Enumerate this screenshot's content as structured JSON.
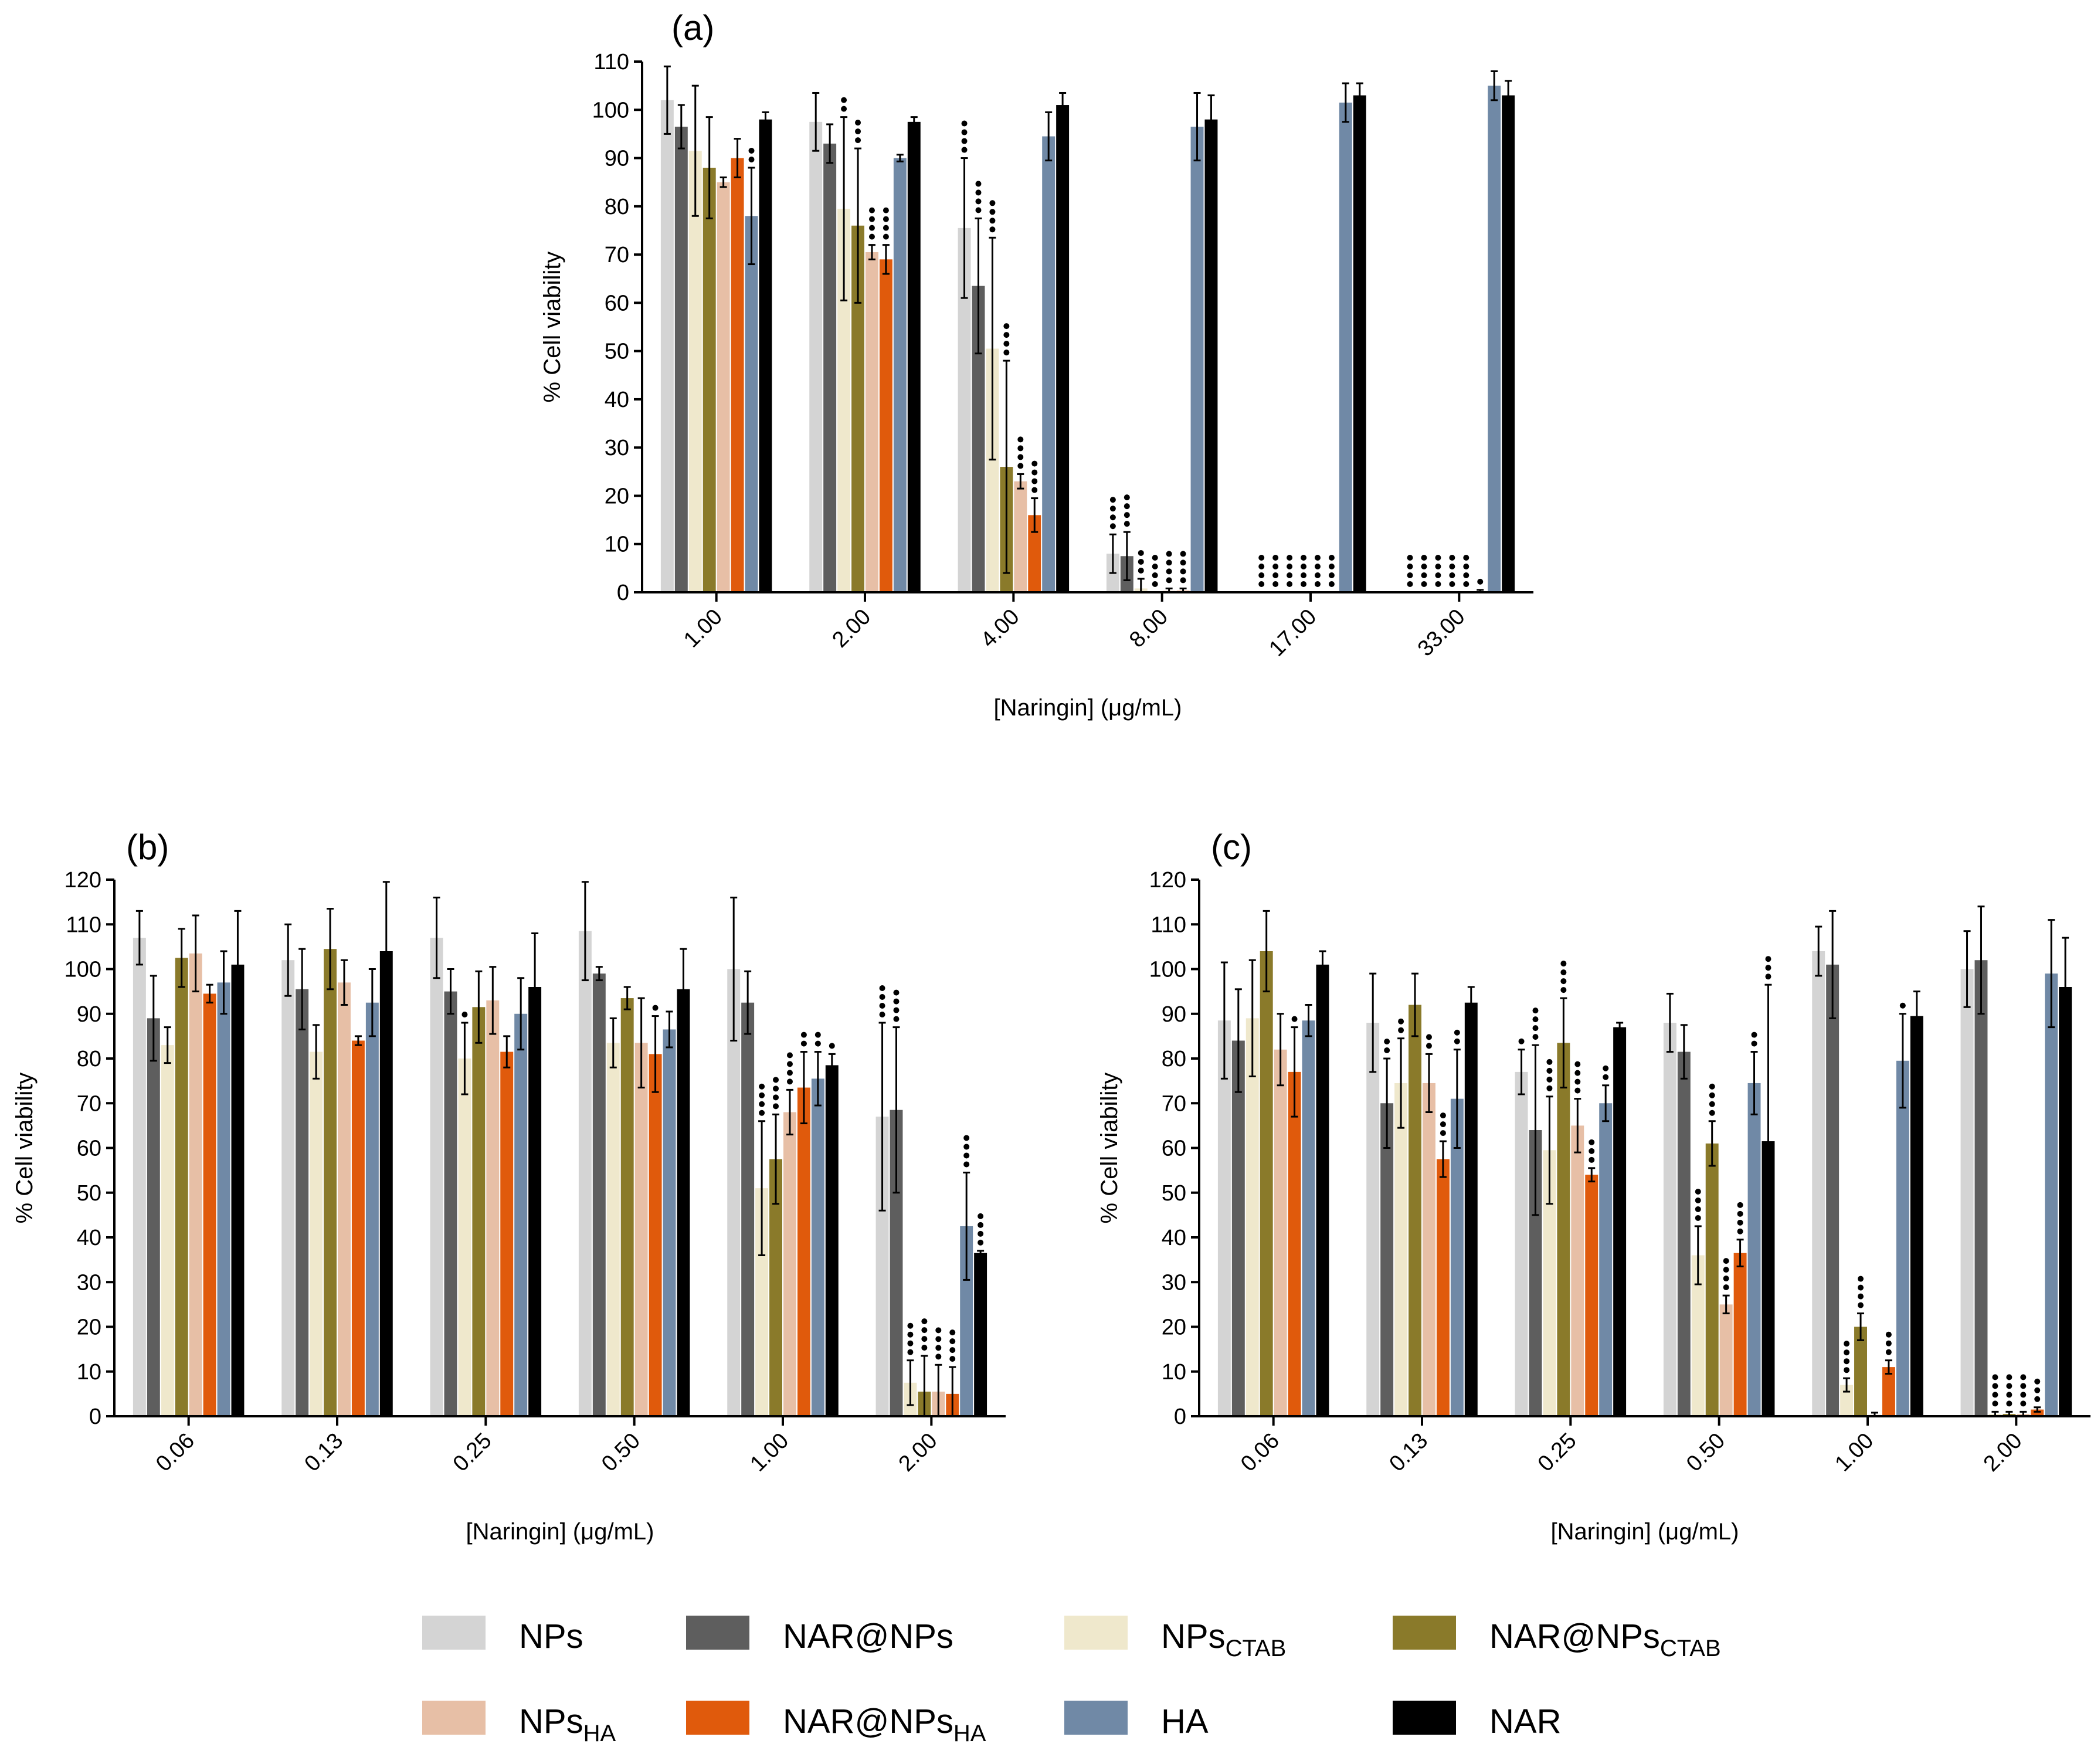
{
  "figure": {
    "series_names": [
      "NPs",
      "NAR@NPs",
      "NPsCTAB",
      "NAR@NPsCTAB",
      "NPsHA",
      "NAR@NPsHA",
      "HA",
      "NAR"
    ],
    "colors": [
      "#d4d4d4",
      "#5e5e5e",
      "#efe8cc",
      "#8a7a2a",
      "#e7bfa6",
      "#e05a0c",
      "#7089a6",
      "#000000"
    ],
    "legend": [
      {
        "base": "NPs",
        "sub": ""
      },
      {
        "base": "NAR@NPs",
        "sub": ""
      },
      {
        "base": "NPs",
        "sub": "CTAB"
      },
      {
        "base": "NAR@NPs",
        "sub": "CTAB"
      },
      {
        "base": "NPs",
        "sub": "HA"
      },
      {
        "base": "NAR@NPs",
        "sub": "HA"
      },
      {
        "base": "HA",
        "sub": ""
      },
      {
        "base": "NAR",
        "sub": ""
      }
    ]
  },
  "chart_data": [
    {
      "type": "bar",
      "panel_label": "(a)",
      "xlabel": "[Naringin] (μg/mL)",
      "ylabel": "% Cell viability",
      "ylim": [
        0,
        110
      ],
      "yticks": [
        0,
        10,
        20,
        30,
        40,
        50,
        60,
        70,
        80,
        90,
        100,
        110
      ],
      "categories": [
        "1.00",
        "2.00",
        "4.00",
        "8.00",
        "17.00",
        "33.00"
      ],
      "series": [
        {
          "name": "NPs",
          "values": [
            102,
            97.5,
            75.5,
            8,
            0,
            0
          ],
          "errors": [
            7,
            6,
            14.5,
            4,
            0,
            0
          ],
          "stars": [
            0,
            0,
            4,
            4,
            4,
            4
          ]
        },
        {
          "name": "NAR@NPs",
          "values": [
            96.5,
            93,
            63.5,
            7.5,
            0,
            0
          ],
          "errors": [
            4.5,
            4,
            14,
            5,
            0,
            0
          ],
          "stars": [
            0,
            0,
            4,
            4,
            4,
            4
          ]
        },
        {
          "name": "NPsCTAB",
          "values": [
            91.5,
            79.5,
            50.5,
            0.8,
            0,
            0
          ],
          "errors": [
            13.5,
            19,
            23,
            2,
            0,
            0
          ],
          "stars": [
            0,
            2,
            4,
            3,
            4,
            4
          ]
        },
        {
          "name": "NAR@NPsCTAB",
          "values": [
            88,
            76,
            26,
            0,
            0,
            0
          ],
          "errors": [
            10.5,
            16,
            22,
            0,
            0,
            0
          ],
          "stars": [
            0,
            3,
            4,
            4,
            4,
            4
          ]
        },
        {
          "name": "NPsHA",
          "values": [
            85,
            70.5,
            23,
            0.3,
            0,
            0
          ],
          "errors": [
            1,
            1.5,
            1.5,
            0.5,
            0,
            0
          ],
          "stars": [
            0,
            4,
            4,
            4,
            4,
            4
          ]
        },
        {
          "name": "NAR@NPsHA",
          "values": [
            90,
            69,
            16,
            0.3,
            0,
            0
          ],
          "errors": [
            4,
            3,
            3.5,
            0.5,
            0,
            0.5
          ],
          "stars": [
            0,
            4,
            4,
            4,
            4,
            1
          ]
        },
        {
          "name": "HA",
          "values": [
            78,
            90,
            94.5,
            96.5,
            101.5,
            105
          ],
          "errors": [
            10,
            0.7,
            5,
            7,
            4,
            3
          ],
          "stars": [
            2,
            0,
            0,
            0,
            0,
            0
          ]
        },
        {
          "name": "NAR",
          "values": [
            98,
            97.5,
            101,
            98,
            103,
            103
          ],
          "errors": [
            1.5,
            1,
            2.5,
            5,
            2.5,
            3
          ],
          "stars": [
            0,
            0,
            0,
            0,
            0,
            0
          ]
        }
      ]
    },
    {
      "type": "bar",
      "panel_label": "(b)",
      "xlabel": "[Naringin] (μg/mL)",
      "ylabel": "% Cell viability",
      "ylim": [
        0,
        120
      ],
      "yticks": [
        0,
        10,
        20,
        30,
        40,
        50,
        60,
        70,
        80,
        90,
        100,
        110,
        120
      ],
      "categories": [
        "0.06",
        "0.13",
        "0.25",
        "0.50",
        "1.00",
        "2.00"
      ],
      "series": [
        {
          "name": "NPs",
          "values": [
            107,
            102,
            107,
            108.5,
            100,
            67
          ],
          "errors": [
            6,
            8,
            9,
            11,
            16,
            21
          ],
          "stars": [
            0,
            0,
            0,
            0,
            0,
            4
          ]
        },
        {
          "name": "NAR@NPs",
          "values": [
            89,
            95.5,
            95,
            99,
            92.5,
            68.5
          ],
          "errors": [
            9.5,
            9,
            5,
            1.5,
            7,
            18.5
          ],
          "stars": [
            0,
            0,
            0,
            0,
            0,
            4
          ]
        },
        {
          "name": "NPsCTAB",
          "values": [
            83,
            81.5,
            80,
            83.5,
            51,
            7.5
          ],
          "errors": [
            4,
            6,
            8,
            5.5,
            15,
            5
          ],
          "stars": [
            0,
            0,
            1,
            0,
            4,
            4
          ]
        },
        {
          "name": "NAR@NPsCTAB",
          "values": [
            102.5,
            104.5,
            91.5,
            93.5,
            57.5,
            5.5
          ],
          "errors": [
            6.5,
            9,
            8,
            2.5,
            10,
            8
          ],
          "stars": [
            0,
            0,
            0,
            0,
            4,
            4
          ]
        },
        {
          "name": "NPsHA",
          "values": [
            103.5,
            97,
            93,
            83.5,
            68,
            5.5
          ],
          "errors": [
            8.5,
            5,
            7.5,
            10,
            5,
            6
          ],
          "stars": [
            0,
            0,
            0,
            0,
            4,
            4
          ]
        },
        {
          "name": "NAR@NPsHA",
          "values": [
            94.5,
            84,
            81.5,
            81,
            73.5,
            5
          ],
          "errors": [
            2,
            1,
            3.5,
            8.5,
            8,
            6
          ],
          "stars": [
            0,
            0,
            0,
            1,
            2,
            4
          ]
        },
        {
          "name": "HA",
          "values": [
            97,
            92.5,
            90,
            86.5,
            75.5,
            42.5
          ],
          "errors": [
            7,
            7.5,
            8,
            4,
            6,
            12
          ],
          "stars": [
            0,
            0,
            0,
            0,
            2,
            4
          ]
        },
        {
          "name": "NAR",
          "values": [
            101,
            104,
            96,
            95.5,
            78.5,
            36.5
          ],
          "errors": [
            12,
            15.5,
            12,
            9,
            2.5,
            0.5
          ],
          "stars": [
            0,
            0,
            0,
            0,
            1,
            4
          ]
        }
      ]
    },
    {
      "type": "bar",
      "panel_label": "(c)",
      "xlabel": "[Naringin] (μg/mL)",
      "ylabel": "% Cell viability",
      "ylim": [
        0,
        120
      ],
      "yticks": [
        0,
        10,
        20,
        30,
        40,
        50,
        60,
        70,
        80,
        90,
        100,
        110,
        120
      ],
      "categories": [
        "0.06",
        "0.13",
        "0.25",
        "0.50",
        "1.00",
        "2.00"
      ],
      "series": [
        {
          "name": "NPs",
          "values": [
            88.5,
            88,
            77,
            88,
            104,
            100
          ],
          "errors": [
            13,
            11,
            5,
            6.5,
            5.5,
            8.5
          ],
          "stars": [
            0,
            0,
            1,
            0,
            0,
            0
          ]
        },
        {
          "name": "NAR@NPs",
          "values": [
            84,
            70,
            64,
            81.5,
            101,
            102
          ],
          "errors": [
            11.5,
            10,
            19,
            6,
            12,
            12
          ],
          "stars": [
            0,
            2,
            4,
            0,
            0,
            0
          ]
        },
        {
          "name": "NPsCTAB",
          "values": [
            89,
            74.5,
            59.5,
            36,
            7,
            0.5
          ],
          "errors": [
            13,
            10,
            12,
            6.5,
            1.5,
            0.5
          ],
          "stars": [
            0,
            2,
            4,
            4,
            4,
            4
          ]
        },
        {
          "name": "NAR@NPsCTAB",
          "values": [
            104,
            92,
            83.5,
            61,
            20,
            0.5
          ],
          "errors": [
            9,
            7,
            10,
            5,
            3,
            0.5
          ],
          "stars": [
            0,
            0,
            4,
            4,
            4,
            4
          ]
        },
        {
          "name": "NPsHA",
          "values": [
            82,
            74.5,
            65,
            25,
            0.3,
            0.5
          ],
          "errors": [
            8,
            6.5,
            6,
            2,
            0.5,
            0.5
          ],
          "stars": [
            0,
            2,
            4,
            4,
            0,
            4
          ]
        },
        {
          "name": "NAR@NPsHA",
          "values": [
            77,
            57.5,
            54,
            36.5,
            11,
            1.5
          ],
          "errors": [
            10,
            4,
            1.5,
            3,
            1.5,
            0.5
          ],
          "stars": [
            1,
            3,
            3,
            4,
            3,
            3
          ]
        },
        {
          "name": "HA",
          "values": [
            88.5,
            71,
            70,
            74.5,
            79.5,
            99
          ],
          "errors": [
            3.5,
            11,
            4,
            7,
            10.5,
            12
          ],
          "stars": [
            0,
            2,
            2,
            2,
            1,
            0
          ]
        },
        {
          "name": "NAR",
          "values": [
            101,
            92.5,
            87,
            61.5,
            89.5,
            96
          ],
          "errors": [
            3,
            3.5,
            1,
            35,
            5.5,
            11
          ],
          "stars": [
            0,
            0,
            0,
            3,
            0,
            0
          ]
        }
      ]
    }
  ]
}
